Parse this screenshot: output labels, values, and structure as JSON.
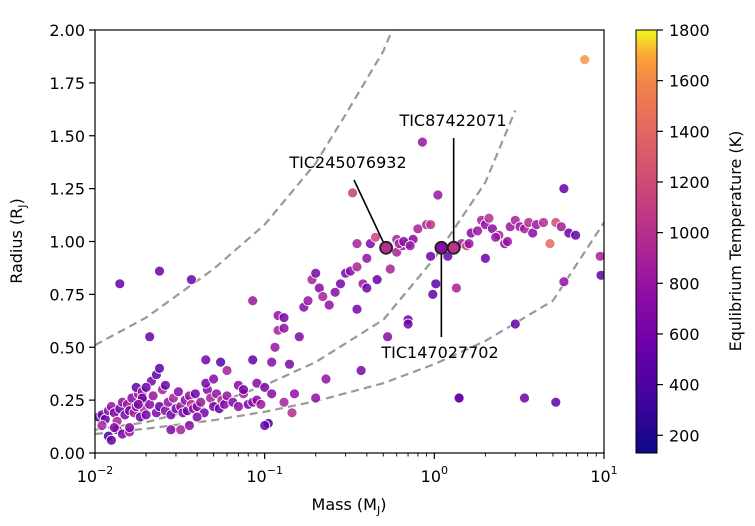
{
  "chart_data": {
    "type": "scatter",
    "title": "",
    "xlabel": "Mass (M",
    "xlabel_sub": "J",
    "xlabel_end": ")",
    "ylabel": "Radius (R",
    "ylabel_sub": "J",
    "ylabel_end": ")",
    "xscale": "log",
    "xlim": [
      0.01,
      10
    ],
    "ylim": [
      0,
      2
    ],
    "x_ticks": [
      {
        "value": 0.01,
        "base": "10",
        "exp": "−2"
      },
      {
        "value": 0.1,
        "base": "10",
        "exp": "−1"
      },
      {
        "value": 1,
        "base": "10",
        "exp": "0"
      },
      {
        "value": 10,
        "base": "10",
        "exp": "1"
      }
    ],
    "y_ticks": [
      "0.00",
      "0.25",
      "0.50",
      "0.75",
      "1.00",
      "1.25",
      "1.50",
      "1.75",
      "2.00"
    ],
    "grid": false,
    "colorbar": {
      "label": "Equlibrium Temperature (K)",
      "range": [
        130,
        1800
      ],
      "ticks": [
        "200",
        "400",
        "600",
        "800",
        "1000",
        "1200",
        "1400",
        "1600",
        "1800"
      ],
      "colormap": "plasma"
    },
    "density_curves": [
      {
        "density": "high",
        "x": [
          0.01,
          0.02,
          0.05,
          0.1,
          0.2,
          0.5,
          1,
          2,
          5,
          10
        ],
        "y": [
          0.09,
          0.115,
          0.155,
          0.195,
          0.245,
          0.33,
          0.42,
          0.53,
          0.72,
          1.09
        ]
      },
      {
        "density": "medium",
        "x": [
          0.01,
          0.02,
          0.05,
          0.1,
          0.2,
          0.5,
          1,
          2,
          3
        ],
        "y": [
          0.11,
          0.145,
          0.23,
          0.32,
          0.43,
          0.63,
          0.92,
          1.28,
          1.62
        ]
      },
      {
        "density": "low",
        "x": [
          0.01,
          0.02,
          0.05,
          0.1,
          0.2,
          0.3,
          0.5,
          0.6
        ],
        "y": [
          0.51,
          0.64,
          0.87,
          1.08,
          1.37,
          1.6,
          1.9,
          2.05
        ]
      }
    ],
    "highlighted": [
      {
        "name": "TIC245076932",
        "mass": 0.52,
        "radius": 0.97,
        "teq": 1000
      },
      {
        "name": "TIC87422071",
        "mass": 1.3,
        "radius": 0.97,
        "teq": 1050
      },
      {
        "name": "TIC147027702",
        "mass": 1.1,
        "radius": 0.97,
        "teq": 720
      }
    ],
    "points": [
      [
        0.0105,
        0.17,
        400
      ],
      [
        0.011,
        0.18,
        600
      ],
      [
        0.0115,
        0.16,
        520
      ],
      [
        0.012,
        0.2,
        700
      ],
      [
        0.0125,
        0.22,
        800
      ],
      [
        0.013,
        0.19,
        620
      ],
      [
        0.0135,
        0.15,
        900
      ],
      [
        0.014,
        0.21,
        500
      ],
      [
        0.0145,
        0.24,
        750
      ],
      [
        0.015,
        0.18,
        650
      ],
      [
        0.0155,
        0.23,
        850
      ],
      [
        0.016,
        0.2,
        560
      ],
      [
        0.0165,
        0.26,
        700
      ],
      [
        0.017,
        0.19,
        900
      ],
      [
        0.0175,
        0.22,
        620
      ],
      [
        0.018,
        0.28,
        780
      ],
      [
        0.0185,
        0.17,
        550
      ],
      [
        0.019,
        0.25,
        680
      ],
      [
        0.0195,
        0.21,
        950
      ],
      [
        0.02,
        0.18,
        600
      ],
      [
        0.021,
        0.23,
        720
      ],
      [
        0.022,
        0.27,
        800
      ],
      [
        0.023,
        0.19,
        640
      ],
      [
        0.024,
        0.22,
        500
      ],
      [
        0.025,
        0.3,
        880
      ],
      [
        0.026,
        0.2,
        700
      ],
      [
        0.027,
        0.24,
        760
      ],
      [
        0.028,
        0.18,
        620
      ],
      [
        0.029,
        0.26,
        900
      ],
      [
        0.03,
        0.21,
        560
      ],
      [
        0.031,
        0.29,
        700
      ],
      [
        0.032,
        0.22,
        850
      ],
      [
        0.033,
        0.19,
        640
      ],
      [
        0.034,
        0.25,
        720
      ],
      [
        0.035,
        0.2,
        600
      ],
      [
        0.036,
        0.27,
        800
      ],
      [
        0.037,
        0.23,
        950
      ],
      [
        0.038,
        0.21,
        680
      ],
      [
        0.039,
        0.28,
        560
      ],
      [
        0.04,
        0.22,
        740
      ],
      [
        0.042,
        0.24,
        820
      ],
      [
        0.044,
        0.19,
        600
      ],
      [
        0.046,
        0.3,
        700
      ],
      [
        0.048,
        0.26,
        880
      ],
      [
        0.05,
        0.22,
        640
      ],
      [
        0.052,
        0.28,
        760
      ],
      [
        0.054,
        0.21,
        520
      ],
      [
        0.056,
        0.25,
        900
      ],
      [
        0.058,
        0.23,
        700
      ],
      [
        0.06,
        0.27,
        800
      ],
      [
        0.065,
        0.24,
        650
      ],
      [
        0.07,
        0.22,
        720
      ],
      [
        0.075,
        0.28,
        880
      ],
      [
        0.08,
        0.23,
        600
      ],
      [
        0.085,
        0.24,
        760
      ],
      [
        0.09,
        0.25,
        700
      ],
      [
        0.095,
        0.23,
        820
      ],
      [
        0.0135,
        0.11,
        560
      ],
      [
        0.0145,
        0.09,
        620
      ],
      [
        0.016,
        0.1,
        800
      ],
      [
        0.012,
        0.08,
        450
      ],
      [
        0.013,
        0.12,
        700
      ],
      [
        0.0125,
        0.06,
        500
      ],
      [
        0.011,
        0.13,
        900
      ],
      [
        0.0175,
        0.31,
        480
      ],
      [
        0.0215,
        0.34,
        620
      ],
      [
        0.019,
        0.29,
        750
      ],
      [
        0.023,
        0.37,
        480
      ],
      [
        0.024,
        0.4,
        460
      ],
      [
        0.026,
        0.32,
        560
      ],
      [
        0.028,
        0.11,
        620
      ],
      [
        0.032,
        0.11,
        900
      ],
      [
        0.036,
        0.13,
        720
      ],
      [
        0.04,
        0.17,
        650
      ],
      [
        0.045,
        0.33,
        600
      ],
      [
        0.05,
        0.35,
        700
      ],
      [
        0.055,
        0.43,
        460
      ],
      [
        0.06,
        0.39,
        900
      ],
      [
        0.07,
        0.32,
        700
      ],
      [
        0.075,
        0.3,
        600
      ],
      [
        0.085,
        0.44,
        480
      ],
      [
        0.09,
        0.33,
        700
      ],
      [
        0.1,
        0.31,
        640
      ],
      [
        0.105,
        0.14,
        400
      ],
      [
        0.1,
        0.13,
        520
      ],
      [
        0.11,
        0.43,
        700
      ],
      [
        0.115,
        0.5,
        800
      ],
      [
        0.12,
        0.65,
        760
      ],
      [
        0.13,
        0.64,
        600
      ],
      [
        0.12,
        0.58,
        900
      ],
      [
        0.14,
        0.42,
        620
      ],
      [
        0.15,
        0.28,
        760
      ],
      [
        0.16,
        0.55,
        650
      ],
      [
        0.17,
        0.69,
        700
      ],
      [
        0.18,
        0.72,
        800
      ],
      [
        0.19,
        0.82,
        900
      ],
      [
        0.2,
        0.85,
        620
      ],
      [
        0.21,
        0.78,
        700
      ],
      [
        0.22,
        0.74,
        880
      ],
      [
        0.24,
        0.7,
        760
      ],
      [
        0.26,
        0.76,
        700
      ],
      [
        0.28,
        0.8,
        600
      ],
      [
        0.3,
        0.85,
        640
      ],
      [
        0.32,
        0.86,
        700
      ],
      [
        0.35,
        0.88,
        900
      ],
      [
        0.38,
        0.8,
        820
      ],
      [
        0.4,
        0.92,
        760
      ],
      [
        0.42,
        0.99,
        650
      ],
      [
        0.45,
        1.02,
        1150
      ],
      [
        0.33,
        1.23,
        1100
      ],
      [
        0.35,
        0.99,
        880
      ],
      [
        0.46,
        0.82,
        540
      ],
      [
        0.53,
        0.55,
        700
      ],
      [
        0.55,
        0.87,
        880
      ],
      [
        0.6,
        0.95,
        900
      ],
      [
        0.65,
        0.98,
        780
      ],
      [
        0.7,
        0.99,
        640
      ],
      [
        0.75,
        1.01,
        700
      ],
      [
        0.8,
        1.06,
        880
      ],
      [
        0.85,
        1.47,
        800
      ],
      [
        0.9,
        1.08,
        900
      ],
      [
        0.95,
        1.08,
        1050
      ],
      [
        0.95,
        0.93,
        560
      ],
      [
        1.02,
        0.8,
        480
      ],
      [
        0.98,
        0.75,
        520
      ],
      [
        1.05,
        1.22,
        800
      ],
      [
        1.2,
        0.93,
        560
      ],
      [
        1.35,
        0.78,
        880
      ],
      [
        1.45,
        0.99,
        900
      ],
      [
        1.55,
        0.98,
        1100
      ],
      [
        1.65,
        1.04,
        700
      ],
      [
        1.8,
        1.05,
        800
      ],
      [
        1.9,
        1.1,
        900
      ],
      [
        2.0,
        1.08,
        760
      ],
      [
        2.1,
        1.11,
        980
      ],
      [
        2.2,
        1.06,
        700
      ],
      [
        2.4,
        1.03,
        860
      ],
      [
        2.6,
        0.99,
        700
      ],
      [
        2.8,
        1.07,
        820
      ],
      [
        3.0,
        1.1,
        900
      ],
      [
        3.2,
        1.07,
        760
      ],
      [
        3.4,
        1.06,
        880
      ],
      [
        3.6,
        1.09,
        960
      ],
      [
        3.8,
        1.04,
        700
      ],
      [
        4.0,
        1.08,
        820
      ],
      [
        4.4,
        1.09,
        980
      ],
      [
        4.8,
        0.99,
        1420
      ],
      [
        5.2,
        1.09,
        1200
      ],
      [
        5.6,
        1.07,
        860
      ],
      [
        6.2,
        1.04,
        540
      ],
      [
        5.8,
        1.25,
        520
      ],
      [
        3.0,
        0.61,
        520
      ],
      [
        3.4,
        0.26,
        560
      ],
      [
        5.2,
        0.24,
        480
      ],
      [
        1.4,
        0.26,
        600
      ],
      [
        0.7,
        0.63,
        520
      ],
      [
        0.4,
        0.78,
        560
      ],
      [
        0.35,
        0.68,
        600
      ],
      [
        0.37,
        0.39,
        640
      ],
      [
        0.23,
        0.35,
        760
      ],
      [
        0.2,
        0.26,
        760
      ],
      [
        0.11,
        0.28,
        700
      ],
      [
        0.13,
        0.24,
        900
      ],
      [
        0.145,
        0.19,
        980
      ],
      [
        0.016,
        0.12,
        700
      ],
      [
        0.014,
        0.8,
        520
      ],
      [
        0.024,
        0.86,
        540
      ],
      [
        0.037,
        0.82,
        560
      ],
      [
        0.021,
        0.55,
        520
      ],
      [
        0.045,
        0.44,
        600
      ],
      [
        0.7,
        0.61,
        560
      ],
      [
        1.4,
        0.26,
        560
      ],
      [
        2.0,
        0.92,
        560
      ],
      [
        2.3,
        1.02,
        800
      ],
      [
        2.7,
        1.0,
        800
      ],
      [
        0.6,
        1.01,
        880
      ],
      [
        0.62,
        0.99,
        920
      ],
      [
        0.66,
        1.0,
        700
      ],
      [
        0.72,
        0.98,
        800
      ],
      [
        1.6,
        0.99,
        800
      ],
      [
        7.7,
        1.86,
        1650
      ],
      [
        9.5,
        0.93,
        880
      ],
      [
        9.6,
        0.84,
        480
      ],
      [
        6.8,
        1.03,
        500
      ],
      [
        5.8,
        0.81,
        760
      ],
      [
        0.085,
        0.72,
        820
      ],
      [
        0.13,
        0.59,
        760
      ],
      [
        0.02,
        0.31,
        520
      ],
      [
        0.019,
        0.26,
        600
      ],
      [
        0.018,
        0.23,
        660
      ]
    ]
  }
}
